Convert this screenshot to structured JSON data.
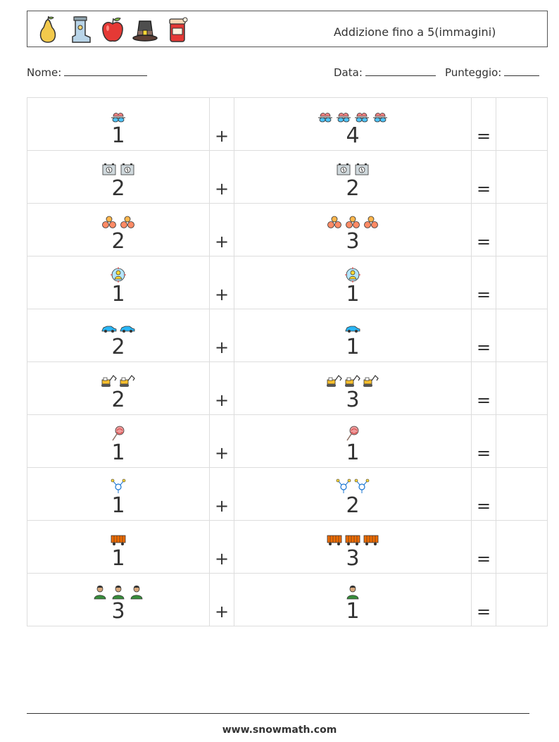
{
  "header": {
    "title": "Addizione fino a 5(immagini)",
    "icons": [
      "pear-icon",
      "boot-icon",
      "apple-icon",
      "pilgrim-hat-icon",
      "jam-jar-icon"
    ]
  },
  "info": {
    "name_label": "Nome:",
    "date_label": "Data:",
    "score_label": "Punteggio:"
  },
  "symbols": {
    "plus": "+",
    "equals": "="
  },
  "problems": [
    {
      "a": 1,
      "b": 4,
      "icon": "goggles-icon"
    },
    {
      "a": 2,
      "b": 2,
      "icon": "battery-icon"
    },
    {
      "a": 2,
      "b": 3,
      "icon": "bread-rolls-icon"
    },
    {
      "a": 1,
      "b": 1,
      "icon": "target-person-icon"
    },
    {
      "a": 2,
      "b": 1,
      "icon": "car-icon"
    },
    {
      "a": 2,
      "b": 3,
      "icon": "excavator-icon"
    },
    {
      "a": 1,
      "b": 1,
      "icon": "lollipop-icon"
    },
    {
      "a": 1,
      "b": 2,
      "icon": "network-node-icon"
    },
    {
      "a": 1,
      "b": 3,
      "icon": "freight-wagon-icon"
    },
    {
      "a": 3,
      "b": 1,
      "icon": "person-icon"
    }
  ],
  "footer": {
    "url": "www.snowmath.com"
  }
}
